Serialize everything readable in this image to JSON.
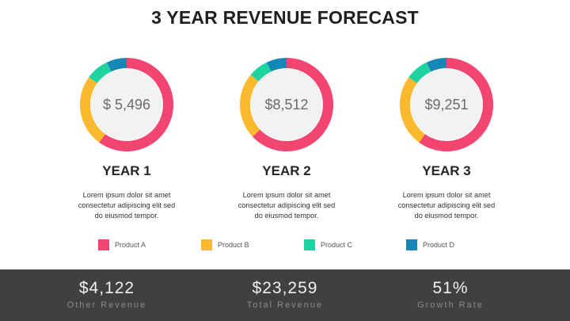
{
  "title": "3 YEAR REVENUE FORECAST",
  "colors": {
    "product_a": "#f2456f",
    "product_b": "#fbb92f",
    "product_c": "#1fd3a0",
    "product_d": "#1787b8",
    "donut_center": "#f2f2f2",
    "footer_bg": "#404040"
  },
  "chart_data": [
    {
      "type": "pie",
      "style": "donut",
      "center_label": "$ 5,496",
      "caption": "YEAR 1",
      "description": [
        "Lorem ipsum dolor sit amet",
        "consectetur adipiscing elit sed",
        "do eiusmod tempor."
      ],
      "categories": [
        "Product A",
        "Product B",
        "Product C",
        "Product D"
      ],
      "values": [
        60,
        25,
        8,
        7
      ]
    },
    {
      "type": "pie",
      "style": "donut",
      "center_label": "$8,512",
      "caption": "YEAR 2",
      "description": [
        "Lorem ipsum dolor sit amet",
        "consectetur adipiscing elit sed",
        "do eiusmod tempor."
      ],
      "categories": [
        "Product A",
        "Product B",
        "Product C",
        "Product D"
      ],
      "values": [
        63,
        23,
        7,
        7
      ]
    },
    {
      "type": "pie",
      "style": "donut",
      "center_label": "$9,251",
      "caption": "YEAR 3",
      "description": [
        "Lorem ipsum dolor sit amet",
        "consectetur adipiscing elit sed",
        "do eiusmod tempor."
      ],
      "categories": [
        "Product A",
        "Product B",
        "Product C",
        "Product D"
      ],
      "values": [
        60,
        25,
        8,
        7
      ]
    }
  ],
  "legend": [
    {
      "label": "Product A",
      "color": "#f2456f"
    },
    {
      "label": "Product B",
      "color": "#fbb92f"
    },
    {
      "label": "Product C",
      "color": "#1fd3a0"
    },
    {
      "label": "Product D",
      "color": "#1787b8"
    }
  ],
  "footer": {
    "stats": [
      {
        "value": "$4,122",
        "label": "Other Revenue"
      },
      {
        "value": "$23,259",
        "label": "Total Revenue"
      },
      {
        "value": "51%",
        "label": "Growth Rate"
      }
    ]
  }
}
